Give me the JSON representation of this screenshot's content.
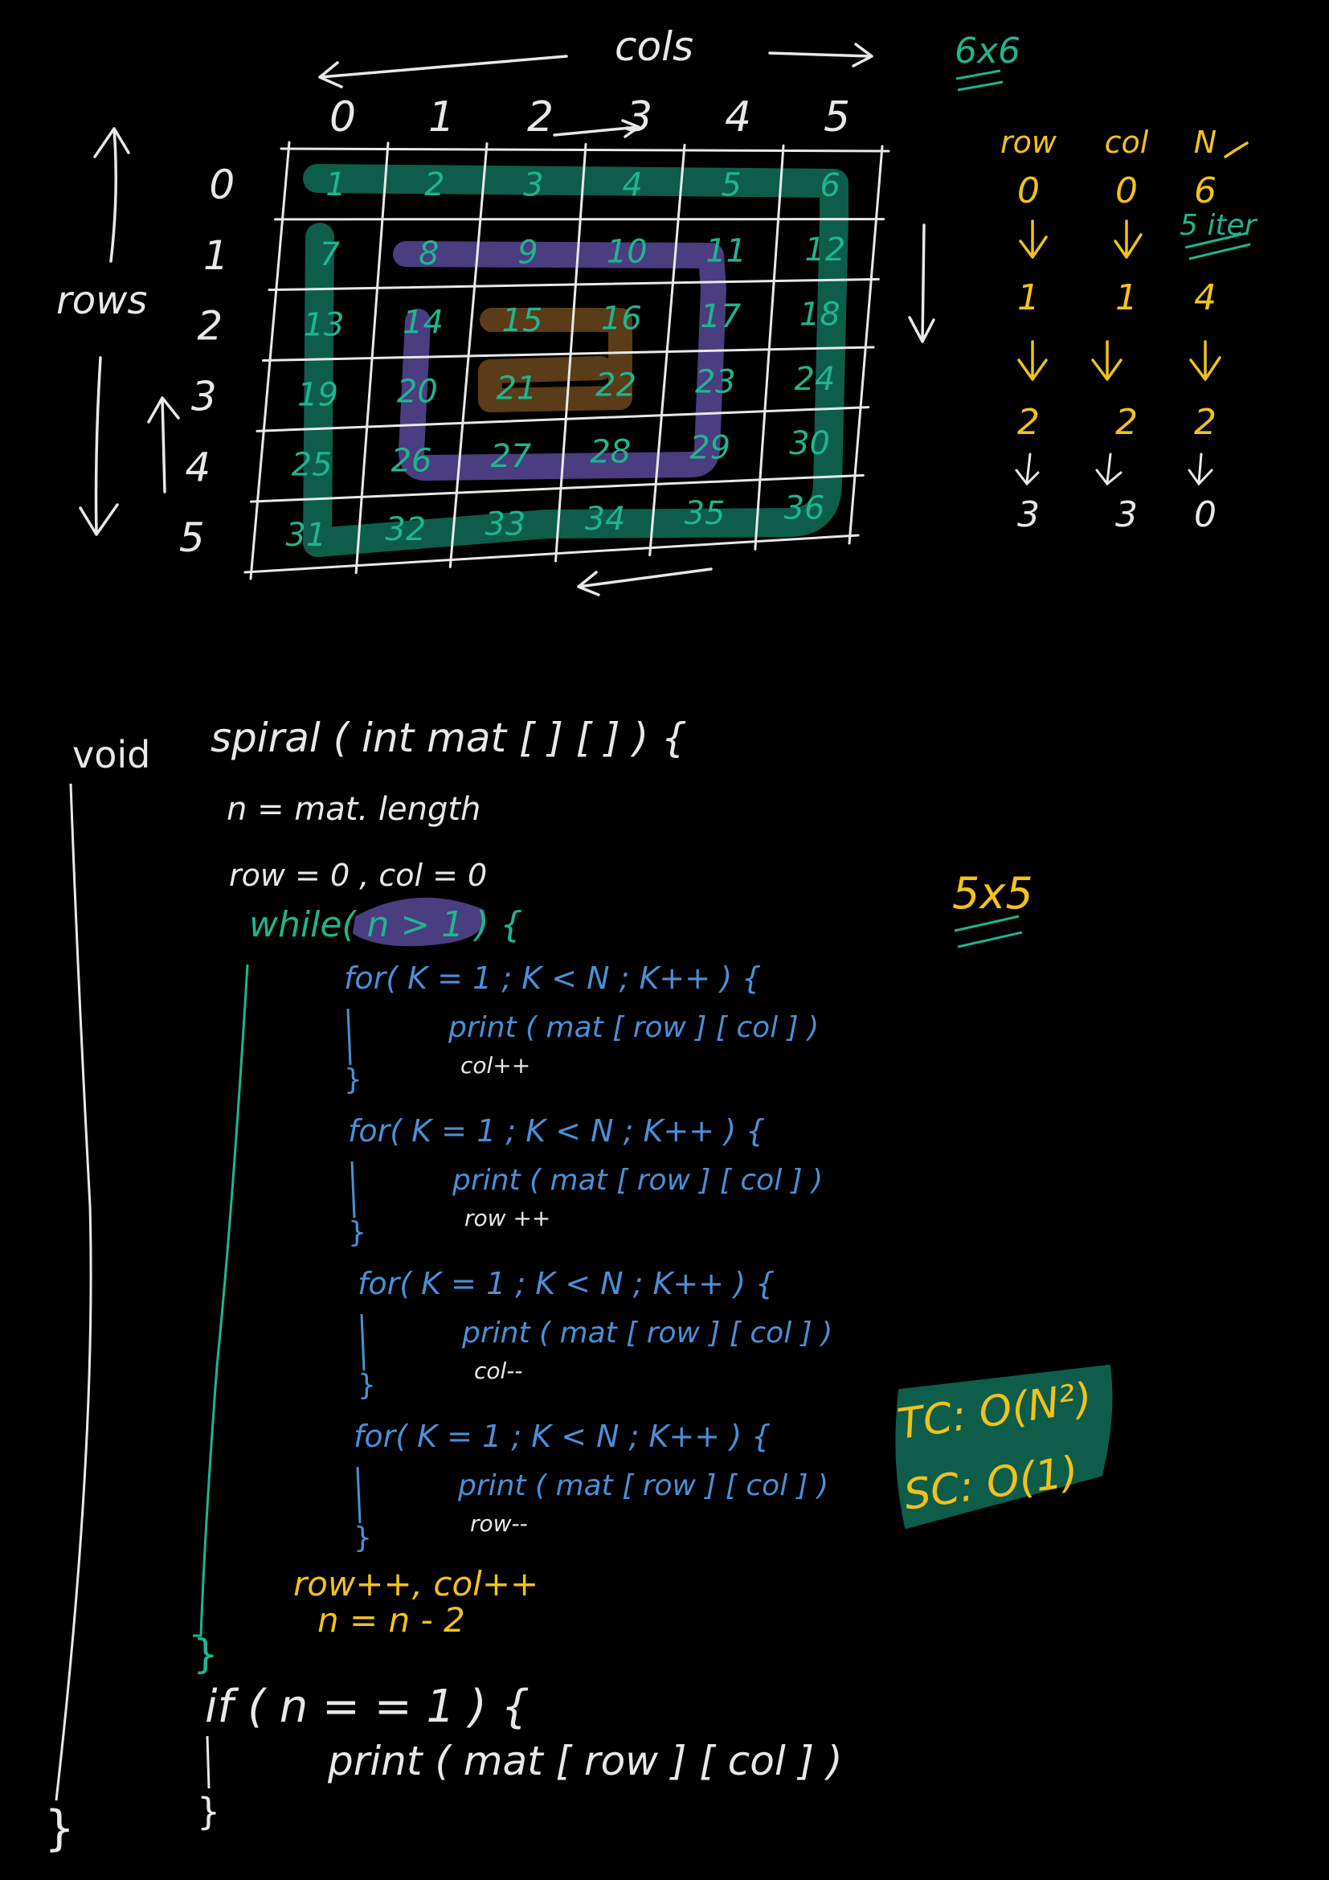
{
  "colors": {
    "background": "#000000",
    "chalk": "#e8e8e8",
    "teal": "#20b58f",
    "teal_fill": "#0d5d4a",
    "purple": "#6b5aa8",
    "brown": "#6e4a1e",
    "blue": "#4a8fd8",
    "yellow": "#f2c21a"
  },
  "grid": {
    "cols_label": "cols",
    "rows_label": "rows",
    "size_label": "6x6",
    "col_headers": [
      "0",
      "1",
      "2",
      "3",
      "4",
      "5"
    ],
    "row_headers": [
      "0",
      "1",
      "2",
      "3",
      "4",
      "5"
    ],
    "cells": [
      [
        "1",
        "2",
        "3",
        "4",
        "5",
        "6"
      ],
      [
        "7",
        "8",
        "9",
        "10",
        "11",
        "12"
      ],
      [
        "13",
        "14",
        "15",
        "16",
        "17",
        "18"
      ],
      [
        "19",
        "20",
        "21",
        "22",
        "23",
        "24"
      ],
      [
        "25",
        "26",
        "27",
        "28",
        "29",
        "30"
      ],
      [
        "31",
        "32",
        "33",
        "34",
        "35",
        "36"
      ]
    ]
  },
  "trace_table": {
    "headers": [
      "row",
      "col",
      "N"
    ],
    "rows": [
      [
        "0",
        "0",
        "6"
      ],
      [
        "1",
        "1",
        "4"
      ],
      [
        "2",
        "2",
        "2"
      ],
      [
        "3",
        "3",
        "0"
      ]
    ],
    "annotation": "5 iter"
  },
  "code": {
    "signature_void": "void",
    "signature_rest": "spiral ( int mat [ ] [ ] )  {",
    "line_n": "n =  mat. length",
    "line_rowcol": "row = 0 ,   col = 0",
    "line_while": "while( n > 1 )  {",
    "loops": [
      {
        "for": "for( K = 1 ;  K < N ;  K++ )  {",
        "print": "print ( mat [ row ] [ col ] )",
        "step": "col++",
        "close": "}"
      },
      {
        "for": "for( K = 1 ;  K < N ;  K++ )  {",
        "print": "print ( mat [ row ] [ col ] )",
        "step": "row ++",
        "close": "}"
      },
      {
        "for": "for( K = 1 ;  K < N ;  K++ )  {",
        "print": "print ( mat [ row ] [ col ] )",
        "step": "col--",
        "close": "}"
      },
      {
        "for": "for( K = 1 ;  K < N ;  K++ )  {",
        "print": "print ( mat [ row ] [ col ] )",
        "step": "row--",
        "close": "}"
      }
    ],
    "line_update1": "row++,  col++",
    "line_update2": "n = n - 2",
    "while_close": "}",
    "line_if": "if ( n = = 1 )  {",
    "line_print_center": "print ( mat [ row ] [ col ] )",
    "if_close": "}",
    "func_close": "}"
  },
  "side_notes": {
    "size_5x5": "5x5",
    "tc": "TC: O(N²)",
    "sc": "SC:  O(1)"
  }
}
